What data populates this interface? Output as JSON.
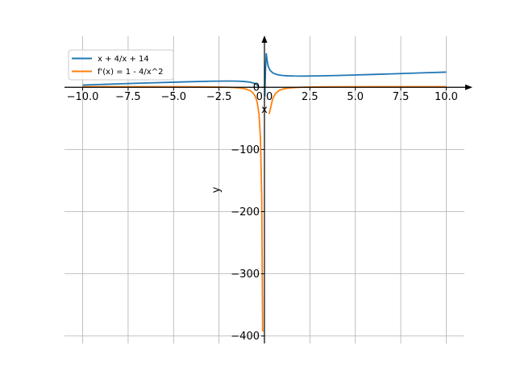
{
  "chart_data": {
    "type": "line",
    "title": "",
    "xlabel": "x",
    "ylabel": "y",
    "xlim": [
      -11.0,
      11.0
    ],
    "ylim": [
      -412,
      82
    ],
    "grid": true,
    "legend_position": "top-left",
    "spines": "centered at origin with arrowheads",
    "xticks": [
      -10.0,
      -7.5,
      -5.0,
      -2.5,
      0.0,
      2.5,
      5.0,
      7.5,
      10.0
    ],
    "xtick_labels": [
      "−10.0",
      "−7.5",
      "−5.0",
      "−2.5",
      "0.0",
      "2.5",
      "5.0",
      "7.5",
      "10.0"
    ],
    "yticks": [
      0,
      -100,
      -200,
      -300,
      -400
    ],
    "ytick_labels": [
      "0",
      "−100",
      "−200",
      "−300",
      "−400"
    ],
    "series": [
      {
        "name": "x + 4/x + 14",
        "color": "#1f77b4",
        "segments": [
          {
            "x": [
              -10,
              -9,
              -8,
              -7,
              -6,
              -5,
              -4,
              -3,
              -2.5,
              -2,
              -1.5,
              -1.2,
              -1,
              -0.8,
              -0.6,
              -0.45,
              -0.35,
              -0.3
            ],
            "y": [
              3.6,
              4.56,
              5.5,
              6.43,
              7.33,
              8.2,
              9,
              9.67,
              9.9,
              10,
              9.83,
              9.47,
              9,
              8.2,
              6.73,
              4.66,
              2.22,
              0.37
            ]
          },
          {
            "x": [
              0.02,
              0.06,
              0.1,
              0.15,
              0.2,
              0.3,
              0.45,
              0.6,
              0.8,
              1,
              1.3,
              1.6,
              2,
              2.5,
              3,
              4,
              5,
              6,
              7,
              8,
              9,
              10
            ],
            "y": [
              -15,
              30,
              54.1,
              42.8,
              34.2,
              27.6,
              23.3,
              21.3,
              19.8,
              19,
              18.4,
              18.1,
              18,
              18.1,
              18.3,
              19,
              19.8,
              20.67,
              21.57,
              22.5,
              23.44,
              24.4
            ]
          }
        ]
      },
      {
        "name": "f'(x) = 1 - 4/x^2",
        "color": "#ff7f0e",
        "segments": [
          {
            "x": [
              -10,
              -6,
              -4,
              -3,
              -2.5,
              -2,
              -1.5,
              -1.2,
              -1,
              -0.8,
              -0.65,
              -0.55,
              -0.48,
              -0.4,
              -0.3,
              -0.22,
              -0.15,
              -0.1
            ],
            "y": [
              0.96,
              0.89,
              0.75,
              0.56,
              0.36,
              0,
              -0.78,
              -1.78,
              -3,
              -5.25,
              -8.5,
              -12.2,
              -16.4,
              -24,
              -43.4,
              -81.6,
              -176.8,
              -392
            ]
          },
          {
            "x": [
              -0.1,
              -0.05
            ],
            "y": [
              -392,
              -392
            ]
          },
          {
            "x": [
              0.25,
              0.3,
              0.35,
              0.45,
              0.6,
              0.8,
              1,
              1.3,
              1.6,
              2,
              2.5,
              3,
              4,
              6,
              10
            ],
            "y": [
              -43,
              -38,
              -31.7,
              -18.8,
              -10.1,
              -5.25,
              -3,
              -1.37,
              -0.56,
              0,
              0.36,
              0.56,
              0.75,
              0.89,
              0.96
            ]
          }
        ]
      }
    ]
  }
}
